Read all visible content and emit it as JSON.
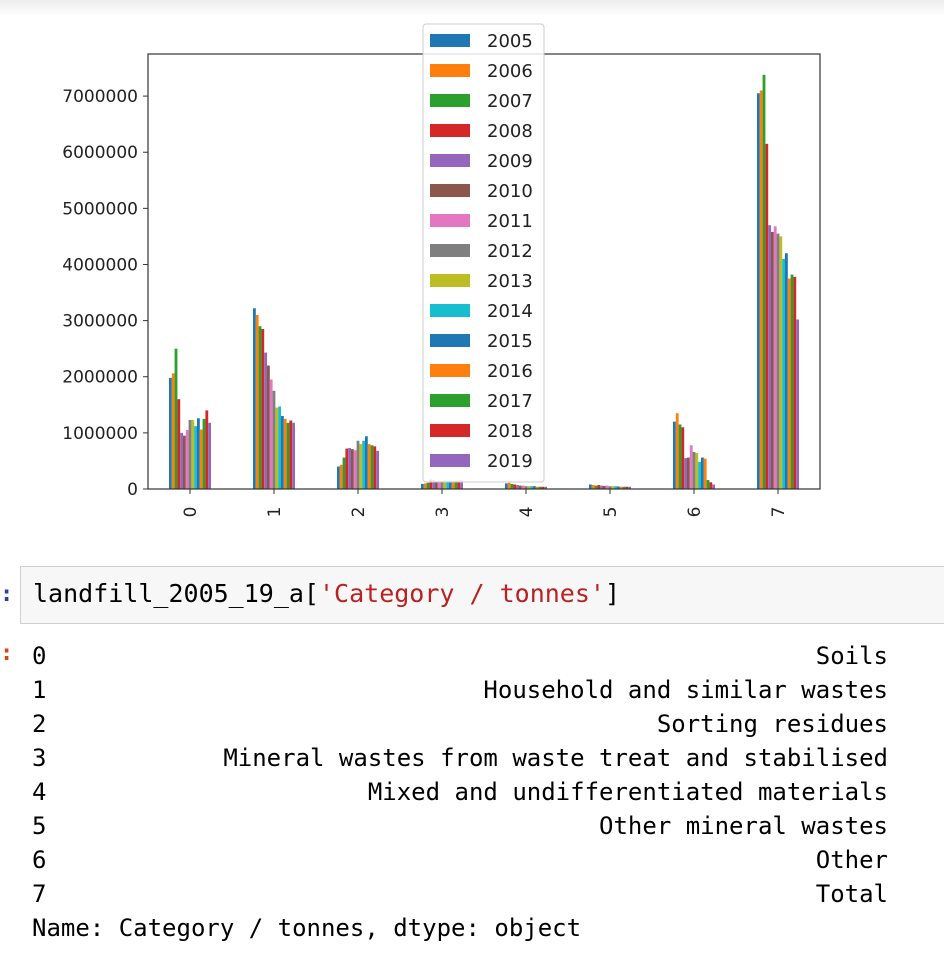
{
  "chart_data": {
    "type": "bar",
    "categories": [
      "0",
      "1",
      "2",
      "3",
      "4",
      "5",
      "6",
      "7"
    ],
    "ylim": [
      0,
      7750000
    ],
    "yticks": [
      0,
      1000000,
      2000000,
      3000000,
      4000000,
      5000000,
      6000000,
      7000000
    ],
    "ytick_labels": [
      "0",
      "1000000",
      "2000000",
      "3000000",
      "4000000",
      "5000000",
      "6000000",
      "7000000"
    ],
    "legend_position": "top-center",
    "series": [
      {
        "name": "2005",
        "color": "#1f77b4",
        "values": [
          1980000,
          3220000,
          400000,
          90000,
          100000,
          80000,
          1200000,
          7050000
        ]
      },
      {
        "name": "2006",
        "color": "#ff7f0e",
        "values": [
          2060000,
          3100000,
          430000,
          100000,
          110000,
          70000,
          1350000,
          7100000
        ]
      },
      {
        "name": "2007",
        "color": "#2ca02c",
        "values": [
          2500000,
          2900000,
          560000,
          110000,
          90000,
          60000,
          1150000,
          7380000
        ]
      },
      {
        "name": "2008",
        "color": "#d62728",
        "values": [
          1600000,
          2850000,
          720000,
          170000,
          80000,
          70000,
          1100000,
          6150000
        ]
      },
      {
        "name": "2009",
        "color": "#9467bd",
        "values": [
          1000000,
          2430000,
          730000,
          160000,
          70000,
          60000,
          550000,
          4700000
        ]
      },
      {
        "name": "2010",
        "color": "#8c564b",
        "values": [
          950000,
          2200000,
          710000,
          140000,
          60000,
          55000,
          560000,
          4580000
        ]
      },
      {
        "name": "2011",
        "color": "#e377c2",
        "values": [
          1050000,
          1950000,
          690000,
          150000,
          60000,
          60000,
          780000,
          4680000
        ]
      },
      {
        "name": "2012",
        "color": "#7f7f7f",
        "values": [
          1230000,
          1750000,
          860000,
          140000,
          50000,
          50000,
          660000,
          4550000
        ]
      },
      {
        "name": "2013",
        "color": "#bcbd22",
        "values": [
          1230000,
          1450000,
          800000,
          160000,
          50000,
          50000,
          640000,
          4500000
        ]
      },
      {
        "name": "2014",
        "color": "#17becf",
        "values": [
          1120000,
          1470000,
          860000,
          140000,
          50000,
          50000,
          480000,
          4100000
        ]
      },
      {
        "name": "2015",
        "color": "#1f77b4",
        "values": [
          1260000,
          1300000,
          940000,
          150000,
          50000,
          45000,
          560000,
          4200000
        ]
      },
      {
        "name": "2016",
        "color": "#ff7f0e",
        "values": [
          1060000,
          1250000,
          800000,
          140000,
          40000,
          40000,
          540000,
          3750000
        ]
      },
      {
        "name": "2017",
        "color": "#2ca02c",
        "values": [
          1250000,
          1180000,
          780000,
          150000,
          40000,
          40000,
          160000,
          3820000
        ]
      },
      {
        "name": "2018",
        "color": "#d62728",
        "values": [
          1400000,
          1220000,
          760000,
          150000,
          40000,
          40000,
          120000,
          3780000
        ]
      },
      {
        "name": "2019",
        "color": "#9467bd",
        "values": [
          1180000,
          1180000,
          680000,
          160000,
          40000,
          40000,
          80000,
          3020000
        ]
      }
    ],
    "xlabel": "",
    "ylabel": "",
    "title": ""
  },
  "code_cell": {
    "prompt": ":",
    "code_prefix": "landfill_2005_19_a[",
    "code_string": "'Category / tonnes'",
    "code_suffix": "]"
  },
  "output": {
    "prompt": ":",
    "rows": [
      {
        "index": "0",
        "value": "Soils"
      },
      {
        "index": "1",
        "value": "Household and similar wastes"
      },
      {
        "index": "2",
        "value": "Sorting residues"
      },
      {
        "index": "3",
        "value": "Mineral wastes from waste treat and stabilised"
      },
      {
        "index": "4",
        "value": "Mixed and undifferentiated materials"
      },
      {
        "index": "5",
        "value": "Other mineral wastes"
      },
      {
        "index": "6",
        "value": "Other"
      },
      {
        "index": "7",
        "value": "Total"
      }
    ],
    "footer": "Name: Category / tonnes, dtype: object"
  }
}
